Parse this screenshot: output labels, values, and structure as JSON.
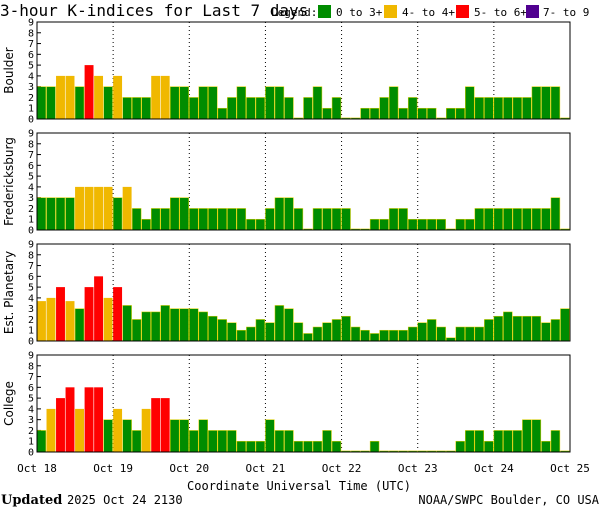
{
  "title": "3-hour K-indices for Last 7 days",
  "legend": {
    "label": "Legend:",
    "items": [
      {
        "label": "0 to 3+",
        "color": "#008c00"
      },
      {
        "label": "4- to 4+",
        "color": "#f0b800"
      },
      {
        "label": "5- to 6+",
        "color": "#ff0000"
      },
      {
        "label": "7- to 9",
        "color": "#500090"
      }
    ]
  },
  "footer": {
    "updated_label": "Updated",
    "updated_value": "2025 Oct 24 2130",
    "credit": "NOAA/SWPC Boulder, CO USA"
  },
  "chart_data": {
    "type": "bar",
    "xlabel": "Coordinate Universal Time (UTC)",
    "x_ticks": [
      "Oct 18",
      "Oct 19",
      "Oct 20",
      "Oct 21",
      "Oct 22",
      "Oct 23",
      "Oct 24",
      "Oct 25"
    ],
    "ylim": [
      0,
      9
    ],
    "y_ticks": [
      "0",
      "1",
      "2",
      "3",
      "4",
      "5",
      "6",
      "7",
      "8",
      "9"
    ],
    "thresholds": {
      "yellow_min": 3.7,
      "red_min": 4.7,
      "purple_min": 6.7
    },
    "panels": [
      {
        "name": "Boulder",
        "values": [
          3,
          3,
          4,
          4,
          3,
          5,
          4,
          3,
          4,
          2,
          2,
          2,
          4,
          4,
          3,
          3,
          2,
          3,
          3,
          1,
          2,
          3,
          2,
          2,
          3,
          3,
          2,
          0.1,
          2,
          3,
          1,
          2,
          0.1,
          0.1,
          1,
          1,
          2,
          3,
          1,
          2,
          1,
          1,
          0.1,
          1,
          1,
          3,
          2,
          2,
          2,
          2,
          2,
          2,
          3,
          3,
          3,
          0.1
        ]
      },
      {
        "name": "Fredericksburg",
        "values": [
          3,
          3,
          3,
          3,
          4,
          4,
          4,
          4,
          3,
          4,
          2,
          1,
          2,
          2,
          3,
          3,
          2,
          2,
          2,
          2,
          2,
          2,
          1,
          1,
          2,
          3,
          3,
          2,
          0.1,
          2,
          2,
          2,
          2,
          0.1,
          0.1,
          1,
          1,
          2,
          2,
          1,
          1,
          1,
          1,
          0.1,
          1,
          1,
          2,
          2,
          2,
          2,
          2,
          2,
          2,
          2,
          3,
          0.1
        ]
      },
      {
        "name": "Est. Planetary",
        "values": [
          3.7,
          4,
          5,
          3.7,
          3,
          5,
          6,
          4,
          5,
          3.3,
          2,
          2.7,
          2.7,
          3.3,
          3,
          3,
          3,
          2.7,
          2.3,
          2,
          1.7,
          1,
          1.3,
          2,
          1.7,
          3.3,
          3,
          1.7,
          0.7,
          1.3,
          1.7,
          2,
          2.3,
          1.3,
          1,
          0.7,
          1,
          1,
          1,
          1.3,
          1.7,
          2,
          1.3,
          0.3,
          1.3,
          1.3,
          1.3,
          2,
          2.3,
          2.7,
          2.3,
          2.3,
          2.3,
          1.7,
          2,
          3
        ]
      },
      {
        "name": "College",
        "values": [
          2,
          4,
          5,
          6,
          4,
          6,
          6,
          3,
          4,
          3,
          2,
          4,
          5,
          5,
          3,
          3,
          2,
          3,
          2,
          2,
          2,
          1,
          1,
          1,
          3,
          2,
          2,
          1,
          1,
          1,
          2,
          1,
          0.1,
          0.1,
          0.1,
          1,
          0.1,
          0.1,
          0.1,
          0.1,
          0.1,
          0.1,
          0.1,
          0.1,
          1,
          2,
          2,
          1,
          2,
          2,
          2,
          3,
          3,
          1,
          2,
          0.1
        ]
      }
    ]
  }
}
